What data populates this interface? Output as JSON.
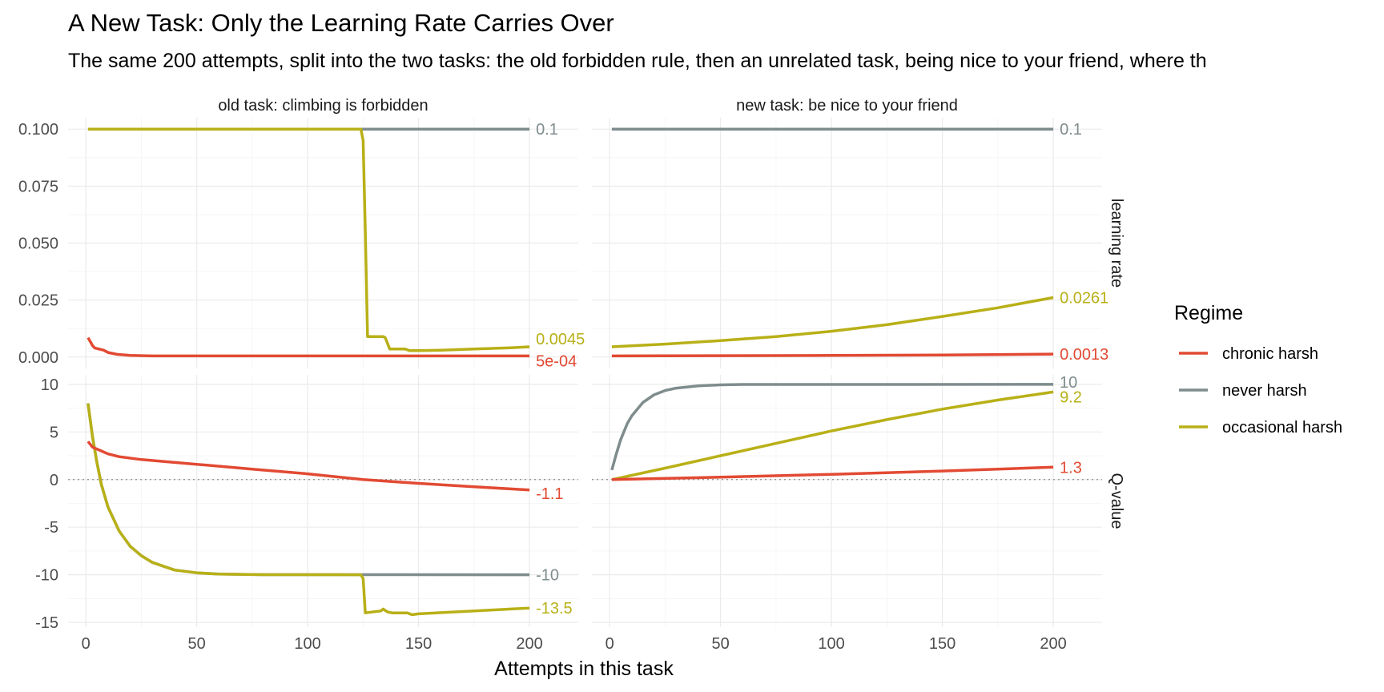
{
  "chart_data": {
    "type": "line",
    "title": "A New Task: Only the Learning Rate Carries Over",
    "subtitle": "The same 200 attempts, split into the two tasks: the old forbidden rule, then an unrelated task, being nice to your friend, where th",
    "xlabel": "Attempts in this task",
    "xlim": [
      1,
      200
    ],
    "x_ticks": [
      "0",
      "50",
      "100",
      "150",
      "200"
    ],
    "columns": [
      "old task: climbing is forbidden",
      "new task: be nice to your friend"
    ],
    "rows": [
      "learning rate",
      "Q-value"
    ],
    "y_ticks": {
      "learning rate": [
        "0.000",
        "0.025",
        "0.050",
        "0.075",
        "0.100"
      ],
      "Q-value": [
        "-15",
        "-10",
        "-5",
        "0",
        "5",
        "10"
      ]
    },
    "ylim": {
      "learning rate": [
        -0.005,
        0.105
      ],
      "Q-value": [
        -15.5,
        11
      ]
    },
    "zero_reference_line": {
      "rows": [
        "Q-value"
      ],
      "y": 0,
      "style": "dotted"
    },
    "grid": true,
    "legend": {
      "title": "Regime",
      "placement": "right",
      "entries": [
        "chronic harsh",
        "never harsh",
        "occasional harsh"
      ]
    },
    "colors": {
      "chronic harsh": "#e24a33",
      "never harsh": "#7f8c8d",
      "occasional harsh": "#b8b017"
    },
    "series": [
      {
        "name": "never harsh",
        "panel": "old task: climbing is forbidden",
        "row": "learning rate",
        "points": [
          [
            1,
            0.1
          ],
          [
            200,
            0.1
          ]
        ],
        "end_label": "0.1"
      },
      {
        "name": "occasional harsh",
        "panel": "old task: climbing is forbidden",
        "row": "learning rate",
        "points": [
          [
            1,
            0.1
          ],
          [
            124,
            0.1
          ],
          [
            125,
            0.095
          ],
          [
            126,
            0.055
          ],
          [
            127,
            0.009
          ],
          [
            134,
            0.009
          ],
          [
            135,
            0.0085
          ],
          [
            136,
            0.006
          ],
          [
            137,
            0.0035
          ],
          [
            144,
            0.0035
          ],
          [
            146,
            0.0028
          ],
          [
            150,
            0.0028
          ],
          [
            160,
            0.003
          ],
          [
            175,
            0.0035
          ],
          [
            190,
            0.004
          ],
          [
            200,
            0.0045
          ]
        ],
        "end_label": "0.0045"
      },
      {
        "name": "chronic harsh",
        "panel": "old task: climbing is forbidden",
        "row": "learning rate",
        "points": [
          [
            1,
            0.0085
          ],
          [
            2,
            0.0068
          ],
          [
            3,
            0.005
          ],
          [
            4,
            0.004
          ],
          [
            6,
            0.0035
          ],
          [
            8,
            0.003
          ],
          [
            10,
            0.002
          ],
          [
            14,
            0.0012
          ],
          [
            20,
            0.0007
          ],
          [
            30,
            0.0005
          ],
          [
            60,
            0.0005
          ],
          [
            200,
            0.0005
          ]
        ],
        "end_label": "5e-04"
      },
      {
        "name": "never harsh",
        "panel": "new task: be nice to your friend",
        "row": "learning rate",
        "points": [
          [
            1,
            0.1
          ],
          [
            200,
            0.1
          ]
        ],
        "end_label": "0.1"
      },
      {
        "name": "occasional harsh",
        "panel": "new task: be nice to your friend",
        "row": "learning rate",
        "points": [
          [
            1,
            0.0045
          ],
          [
            25,
            0.0057
          ],
          [
            50,
            0.0072
          ],
          [
            75,
            0.009
          ],
          [
            100,
            0.0113
          ],
          [
            125,
            0.0142
          ],
          [
            150,
            0.0178
          ],
          [
            175,
            0.0216
          ],
          [
            200,
            0.0261
          ]
        ],
        "end_label": "0.0261"
      },
      {
        "name": "chronic harsh",
        "panel": "new task: be nice to your friend",
        "row": "learning rate",
        "points": [
          [
            1,
            0.0005
          ],
          [
            50,
            0.0006
          ],
          [
            100,
            0.0007
          ],
          [
            150,
            0.0009
          ],
          [
            200,
            0.0013
          ]
        ],
        "end_label": "0.0013"
      },
      {
        "name": "never harsh",
        "panel": "old task: climbing is forbidden",
        "row": "Q-value",
        "points": [
          [
            1,
            8
          ],
          [
            3,
            4.5
          ],
          [
            5,
            1.8
          ],
          [
            7,
            -0.5
          ],
          [
            10,
            -2.9
          ],
          [
            15,
            -5.4
          ],
          [
            20,
            -7.0
          ],
          [
            25,
            -8.0
          ],
          [
            30,
            -8.7
          ],
          [
            40,
            -9.5
          ],
          [
            50,
            -9.8
          ],
          [
            60,
            -9.93
          ],
          [
            80,
            -9.99
          ],
          [
            200,
            -10
          ]
        ],
        "end_label": "-10"
      },
      {
        "name": "occasional harsh",
        "panel": "old task: climbing is forbidden",
        "row": "Q-value",
        "points": [
          [
            1,
            8
          ],
          [
            3,
            4.5
          ],
          [
            5,
            1.8
          ],
          [
            7,
            -0.5
          ],
          [
            10,
            -2.9
          ],
          [
            15,
            -5.4
          ],
          [
            20,
            -7.0
          ],
          [
            25,
            -8.0
          ],
          [
            30,
            -8.7
          ],
          [
            40,
            -9.5
          ],
          [
            50,
            -9.8
          ],
          [
            60,
            -9.93
          ],
          [
            80,
            -9.99
          ],
          [
            124,
            -10
          ],
          [
            125,
            -10.4
          ],
          [
            126,
            -14
          ],
          [
            133,
            -13.8
          ],
          [
            134,
            -13.6
          ],
          [
            136,
            -13.9
          ],
          [
            138,
            -14
          ],
          [
            145,
            -14
          ],
          [
            147,
            -14.2
          ],
          [
            150,
            -14.1
          ],
          [
            200,
            -13.5
          ]
        ],
        "end_label": "-13.5"
      },
      {
        "name": "chronic harsh",
        "panel": "old task: climbing is forbidden",
        "row": "Q-value",
        "points": [
          [
            1,
            4
          ],
          [
            3,
            3.4
          ],
          [
            6,
            3.1
          ],
          [
            10,
            2.7
          ],
          [
            15,
            2.4
          ],
          [
            25,
            2.1
          ],
          [
            50,
            1.6
          ],
          [
            75,
            1.1
          ],
          [
            100,
            0.6
          ],
          [
            125,
            0
          ],
          [
            150,
            -0.4
          ],
          [
            175,
            -0.75
          ],
          [
            200,
            -1.1
          ]
        ],
        "end_label": "-1.1"
      },
      {
        "name": "never harsh",
        "panel": "new task: be nice to your friend",
        "row": "Q-value",
        "points": [
          [
            1,
            1
          ],
          [
            3,
            2.7
          ],
          [
            5,
            4.2
          ],
          [
            8,
            5.9
          ],
          [
            10,
            6.7
          ],
          [
            15,
            8.1
          ],
          [
            20,
            8.9
          ],
          [
            25,
            9.35
          ],
          [
            30,
            9.6
          ],
          [
            40,
            9.85
          ],
          [
            50,
            9.95
          ],
          [
            60,
            9.99
          ],
          [
            200,
            10
          ]
        ],
        "end_label": "10"
      },
      {
        "name": "occasional harsh",
        "panel": "new task: be nice to your friend",
        "row": "Q-value",
        "points": [
          [
            1,
            0
          ],
          [
            25,
            1.2
          ],
          [
            50,
            2.5
          ],
          [
            75,
            3.8
          ],
          [
            100,
            5.1
          ],
          [
            125,
            6.3
          ],
          [
            150,
            7.4
          ],
          [
            175,
            8.35
          ],
          [
            200,
            9.2
          ]
        ],
        "end_label": "9.2"
      },
      {
        "name": "chronic harsh",
        "panel": "new task: be nice to your friend",
        "row": "Q-value",
        "points": [
          [
            1,
            0
          ],
          [
            50,
            0.25
          ],
          [
            100,
            0.55
          ],
          [
            150,
            0.9
          ],
          [
            200,
            1.3
          ]
        ],
        "end_label": "1.3"
      }
    ]
  }
}
